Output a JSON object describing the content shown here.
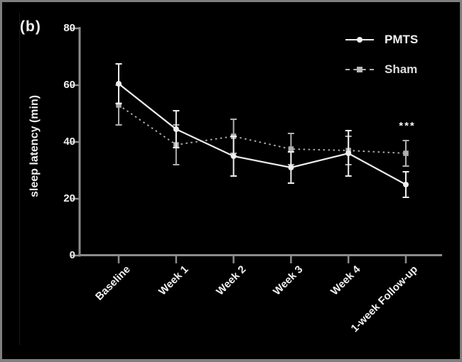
{
  "panel_label": "(b)",
  "colors": {
    "background": "#000000",
    "frame_border": "#7f7f7f",
    "axis": "#8c8c8c",
    "pmts": "#eeeeee",
    "sham": "#b0b0b0",
    "text": "#f2f2f2"
  },
  "chart_data": {
    "type": "line",
    "title": "",
    "xlabel": "",
    "ylabel": "sleep latency (min)",
    "ylim": [
      0,
      80
    ],
    "yticks": [
      0,
      20,
      40,
      60,
      80
    ],
    "categories": [
      "Baseline",
      "Week 1",
      "Week 2",
      "Week 3",
      "Week 4",
      "1-week Follow-up"
    ],
    "series": [
      {
        "name": "PMTS",
        "values": [
          60.5,
          44.5,
          35,
          31,
          36,
          25
        ],
        "errors": [
          7,
          6.5,
          7,
          5.5,
          8,
          4.5
        ],
        "marker": "circle",
        "line_style": "solid",
        "color": "#eeeeee"
      },
      {
        "name": "Sham",
        "values": [
          53,
          39,
          42,
          37.5,
          37,
          36
        ],
        "errors": [
          7,
          7,
          6,
          5.5,
          5,
          4.5
        ],
        "marker": "square",
        "line_style": "dashed",
        "color": "#b0b0b0"
      }
    ],
    "legend_position": "top-right",
    "grid": false,
    "annotation": {
      "text": "***",
      "category_index": 5,
      "series": "Sham",
      "meaning": "significance marker above 1-week Follow-up Sham point"
    }
  }
}
